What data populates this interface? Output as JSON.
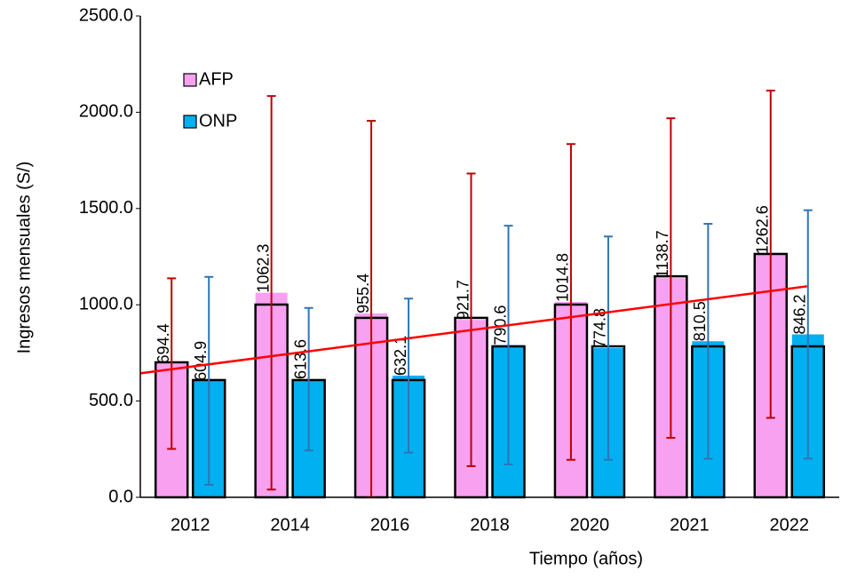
{
  "chart_data": {
    "type": "bar",
    "x_label": "Tiempo (años)",
    "y_label": "Ingresos mensuales (S/)",
    "categories": [
      "2012",
      "2014",
      "2016",
      "2018",
      "2020",
      "2021",
      "2022"
    ],
    "series": [
      {
        "name": "AFP",
        "color": "#f7a1f0",
        "error_color": "#c00000",
        "values": [
          694.4,
          1062.3,
          955.4,
          921.7,
          1014.8,
          1138.7,
          1262.6
        ],
        "errors": [
          443,
          1022,
          1000,
          760,
          820,
          830,
          850
        ]
      },
      {
        "name": "ONP",
        "color": "#00b0f0",
        "error_color": "#2e75b6",
        "values": [
          604.9,
          613.6,
          632.1,
          790.6,
          774.8,
          810.5,
          846.2
        ],
        "errors": [
          540,
          370,
          400,
          620,
          580,
          610,
          645
        ]
      }
    ],
    "outlines": [
      {
        "color": "#000000",
        "values": [
          701,
          1001,
          932,
          932,
          1001,
          1148,
          1264
        ]
      },
      {
        "color": "#000000",
        "values": [
          609,
          609,
          609,
          784,
          784,
          784,
          784
        ]
      }
    ],
    "trend": {
      "color": "#ff0000",
      "values": [
        678,
        1084
      ]
    },
    "ylim": [
      0,
      2500
    ],
    "yticks": [
      {
        "value": 0,
        "label": "0.0"
      },
      {
        "value": 500,
        "label": "500.0"
      },
      {
        "value": 1000,
        "label": "1000.0"
      },
      {
        "value": 1500,
        "label": "1500.0"
      },
      {
        "value": 2000,
        "label": "2000.0"
      },
      {
        "value": 2500,
        "label": "2500.0"
      }
    ],
    "legend": "upper left"
  }
}
